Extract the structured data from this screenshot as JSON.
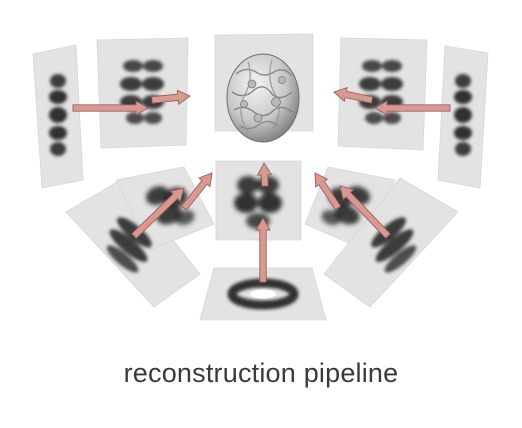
{
  "caption": "reconstruction pipeline",
  "colors": {
    "panel": "#e3e3e3",
    "arrow_fill": "#d69a93",
    "arrow_stroke": "#9c5f58",
    "blob_dark": "#1e1e1e",
    "model_light": "#d9d9d9"
  },
  "icons": {
    "panels": "projection-image-panel",
    "arrows": "projection-arrow",
    "center": "reconstructed-3d-volume"
  }
}
